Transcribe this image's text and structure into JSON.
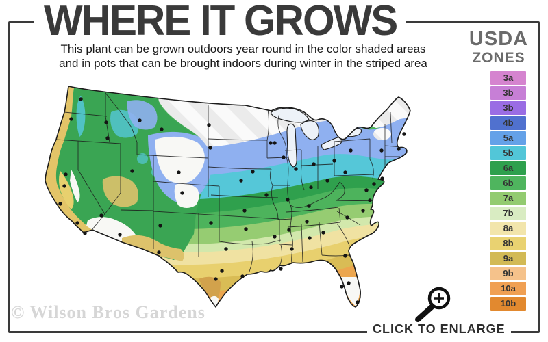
{
  "header": {
    "title": "WHERE IT GROWS",
    "subtitle_line1": "This plant can be grown outdoors year round in the color shaded areas",
    "subtitle_line2": "and in pots that can be brought indoors during winter in the striped area"
  },
  "legend": {
    "title_line1": "USDA",
    "title_line2": "ZONES",
    "zones": [
      {
        "label": "3a",
        "color": "#d584cf"
      },
      {
        "label": "3b",
        "color": "#c77fd6"
      },
      {
        "label": "3b",
        "color": "#9a6de4"
      },
      {
        "label": "4b",
        "color": "#5071cf"
      },
      {
        "label": "5a",
        "color": "#64a1e8"
      },
      {
        "label": "5b",
        "color": "#52c6d8"
      },
      {
        "label": "6a",
        "color": "#2ea04d"
      },
      {
        "label": "6b",
        "color": "#4fb55e"
      },
      {
        "label": "7a",
        "color": "#93cb70"
      },
      {
        "label": "7b",
        "color": "#d9ecc2"
      },
      {
        "label": "8a",
        "color": "#f2e5ab"
      },
      {
        "label": "8b",
        "color": "#e9d271"
      },
      {
        "label": "9a",
        "color": "#d2ba55"
      },
      {
        "label": "9b",
        "color": "#f5c28b"
      },
      {
        "label": "10a",
        "color": "#f0a053"
      },
      {
        "label": "10b",
        "color": "#e2892f"
      }
    ]
  },
  "map": {
    "alt": "Map of the continental United States shaded by USDA hardiness zones, striped in the coldest northern areas",
    "palette": {
      "outline": "#1c1c1c",
      "stripedBase": "#ebebeb",
      "stripe": "#fafafa",
      "blue": "#8fb0f0",
      "cyan": "#55c7d8",
      "green6a": "#2fa04d",
      "green6b": "#4db35c",
      "green7a": "#96cc72",
      "pale7b": "#d2e8ac",
      "pale8a": "#f0e2a2",
      "yellow8b": "#e8d06e",
      "gold9a": "#d9bc55",
      "orange": "#eca64e",
      "tan": "#ddc26b",
      "coastGold": "#e3c468",
      "goldDeep": "#d2a24c",
      "whiteZone": "#f8f8f5",
      "westGreen": "#3aa553",
      "lake": "#edf2f8",
      "dot": "#141414"
    }
  },
  "footer": {
    "watermark": "© Wilson Bros Gardens",
    "enlarge_label": "CLICK TO ENLARGE"
  },
  "colors": {
    "frame": "#3a3a3a",
    "titleText": "#3a3a3a",
    "subtitleText": "#1a1a1a",
    "legendTitle": "#6b6b6b",
    "chipText": "#333333",
    "watermark": "#d6d6d6",
    "enlargeText": "#2d2d2d",
    "icon": "#111111"
  }
}
